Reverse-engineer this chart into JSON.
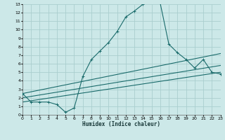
{
  "xlabel": "Humidex (Indice chaleur)",
  "bg_color": "#cce8e8",
  "grid_color": "#aacece",
  "line_color": "#1a6b6b",
  "xlim": [
    0,
    23
  ],
  "ylim": [
    0,
    13
  ],
  "xticks": [
    0,
    1,
    2,
    3,
    4,
    5,
    6,
    7,
    8,
    9,
    10,
    11,
    12,
    13,
    14,
    15,
    16,
    17,
    18,
    19,
    20,
    21,
    22,
    23
  ],
  "yticks": [
    0,
    1,
    2,
    3,
    4,
    5,
    6,
    7,
    8,
    9,
    10,
    11,
    12,
    13
  ],
  "line1_x": [
    0,
    1,
    2,
    3,
    4,
    5,
    6,
    7,
    8,
    9,
    10,
    11,
    12,
    13,
    14,
    15,
    16,
    17,
    18,
    19,
    20,
    21,
    22,
    23
  ],
  "line1_y": [
    2.5,
    1.5,
    1.5,
    1.5,
    1.2,
    0.3,
    0.8,
    4.5,
    6.5,
    7.5,
    8.5,
    9.8,
    11.5,
    12.2,
    13.0,
    13.3,
    13.1,
    8.3,
    7.3,
    6.5,
    5.5,
    6.5,
    5.0,
    4.8
  ],
  "line2_x": [
    0,
    23
  ],
  "line2_y": [
    2.5,
    7.2
  ],
  "line3_x": [
    0,
    23
  ],
  "line3_y": [
    2.0,
    5.8
  ],
  "line4_x": [
    0,
    23
  ],
  "line4_y": [
    1.5,
    5.0
  ]
}
